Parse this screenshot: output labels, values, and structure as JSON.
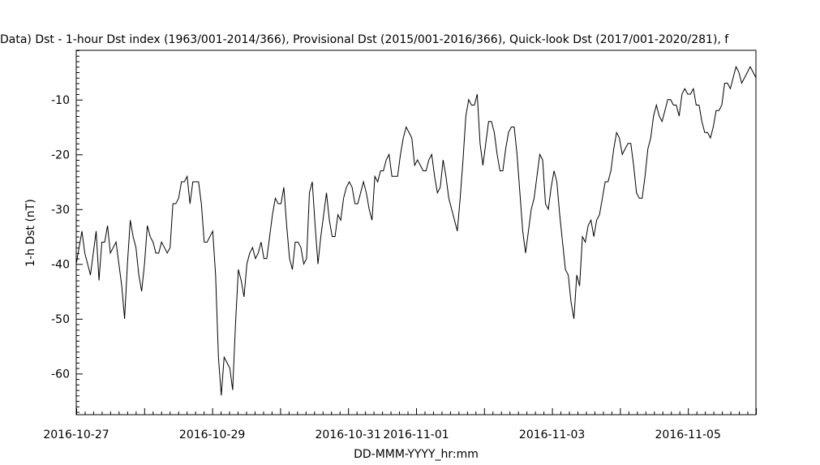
{
  "chart_data": {
    "type": "line",
    "title": "Data)  Dst - 1-hour Dst index (1963/001-2014/366), Provisional Dst (2015/001-2016/366), Quick-look Dst (2017/001-2020/281), f",
    "xlabel": "DD-MMM-YYYY_hr:mm",
    "ylabel": "1-h Dst (nT)",
    "ylim": [
      -67.5,
      -1.0
    ],
    "xlim_days": [
      0,
      10
    ],
    "yticks": [
      {
        "value": -10,
        "label": "-10"
      },
      {
        "value": -20,
        "label": "-20"
      },
      {
        "value": -30,
        "label": "-30"
      },
      {
        "value": -40,
        "label": "-40"
      },
      {
        "value": -50,
        "label": "-50"
      },
      {
        "value": -60,
        "label": "-60"
      }
    ],
    "xticks": [
      {
        "day": 0,
        "label": "2016-10-27"
      },
      {
        "day": 2,
        "label": "2016-10-29"
      },
      {
        "day": 4,
        "label": "2016-10-31"
      },
      {
        "day": 5,
        "label": "2016-11-01"
      },
      {
        "day": 7,
        "label": "2016-11-03"
      },
      {
        "day": 9,
        "label": "2016-11-05"
      }
    ],
    "grid": false,
    "series": [
      {
        "values": [
          -40,
          -37,
          -34,
          -38,
          -40,
          -42,
          -38,
          -34,
          -43,
          -36,
          -36,
          -33,
          -38,
          -37,
          -36,
          -40,
          -44,
          -50,
          -40,
          -32,
          -35,
          -37,
          -42,
          -45,
          -40,
          -33,
          -35,
          -36,
          -38,
          -38,
          -36,
          -37,
          -38,
          -37,
          -29,
          -29,
          -28,
          -25,
          -25,
          -24,
          -29,
          -25,
          -25,
          -25,
          -29,
          -36,
          -36,
          -35,
          -34,
          -42,
          -57,
          -64,
          -57,
          -58,
          -59,
          -63,
          -51,
          -41,
          -43,
          -46,
          -40,
          -38,
          -37,
          -39,
          -38,
          -36,
          -39,
          -39,
          -35,
          -31,
          -28,
          -29,
          -29,
          -26,
          -33,
          -39,
          -41,
          -36,
          -36,
          -37,
          -40,
          -39,
          -27,
          -25,
          -33,
          -40,
          -35,
          -31,
          -27,
          -32,
          -35,
          -35,
          -31,
          -32,
          -28,
          -26,
          -25,
          -26,
          -29,
          -29,
          -27,
          -25,
          -27,
          -30,
          -32,
          -24,
          -25,
          -23,
          -23,
          -21,
          -20,
          -24,
          -24,
          -24,
          -20,
          -17,
          -15,
          -16,
          -17,
          -22,
          -21,
          -22,
          -23,
          -23,
          -21,
          -20,
          -24,
          -27,
          -26,
          -21,
          -24,
          -28,
          -30,
          -32,
          -34,
          -28,
          -21,
          -13,
          -10,
          -11,
          -11,
          -9,
          -18,
          -22,
          -18,
          -14,
          -14,
          -16,
          -20,
          -23,
          -23,
          -19,
          -16,
          -15,
          -15,
          -20,
          -27,
          -34,
          -38,
          -34,
          -30,
          -28,
          -24,
          -20,
          -21,
          -29,
          -30,
          -26,
          -23,
          -25,
          -31,
          -36,
          -41,
          -42,
          -47,
          -50,
          -42,
          -44,
          -35,
          -36,
          -33,
          -32,
          -35,
          -32,
          -31,
          -28,
          -25,
          -25,
          -23,
          -19,
          -16,
          -17,
          -20,
          -19,
          -18,
          -18,
          -22,
          -27,
          -28,
          -28,
          -24,
          -19,
          -17,
          -13,
          -11,
          -13,
          -14,
          -12,
          -10,
          -10,
          -11,
          -11,
          -13,
          -9,
          -8,
          -9,
          -9,
          -8,
          -11,
          -11,
          -14,
          -16,
          -16,
          -17,
          -15,
          -12,
          -12,
          -11,
          -7,
          -7,
          -8,
          -6,
          -4,
          -5,
          -7,
          -6,
          -5,
          -4,
          -5,
          -6
        ]
      }
    ]
  }
}
